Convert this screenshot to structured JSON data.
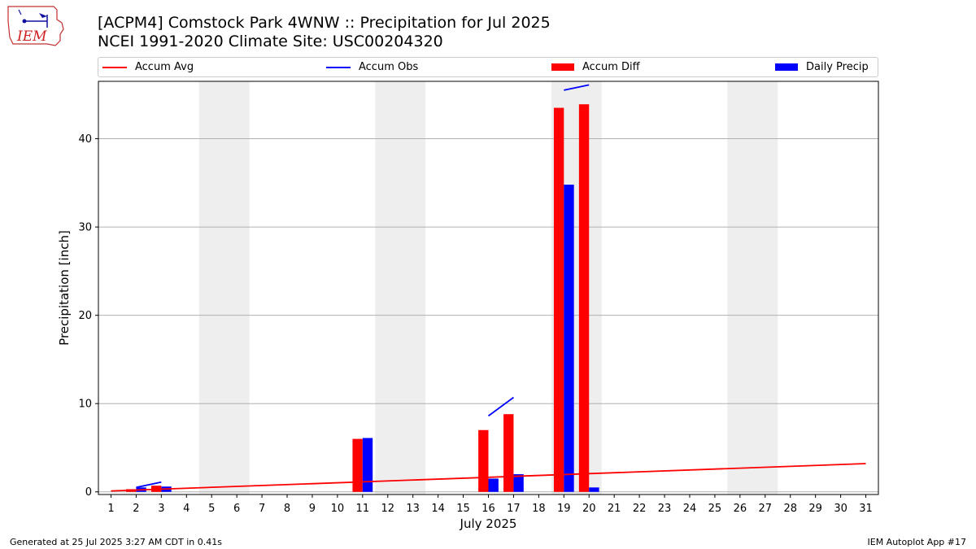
{
  "title_line1": "[ACPM4] Comstock Park 4WNW :: Precipitation for Jul 2025",
  "title_line2": "NCEI 1991-2020 Climate Site: USC00204320",
  "logo_text": "IEM",
  "footer_left": "Generated at 25 Jul 2025 3:27 AM CDT in 0.41s",
  "footer_right": "IEM Autoplot App #17",
  "colors": {
    "avg": "#ff0000",
    "obs": "#0000ff",
    "diff": "#ff0000",
    "daily": "#0000ff",
    "weekend": "#eeeeee",
    "grid": "#b0b0b0"
  },
  "chart_data": {
    "type": "bar",
    "xlabel": "July 2025",
    "ylabel": "Precipitation [inch]",
    "xlim": [
      0.5,
      31.5
    ],
    "ylim": [
      -0.3,
      46.5
    ],
    "yticks": [
      0,
      10,
      20,
      30,
      40
    ],
    "xticks": [
      "1",
      "2",
      "3",
      "4",
      "5",
      "6",
      "7",
      "8",
      "9",
      "10",
      "11",
      "12",
      "13",
      "14",
      "15",
      "16",
      "17",
      "18",
      "19",
      "20",
      "21",
      "22",
      "23",
      "24",
      "25",
      "26",
      "27",
      "28",
      "29",
      "30",
      "31"
    ],
    "grid": "y",
    "legend": "top, horizontal",
    "legend_entries": [
      "Accum Avg",
      "Accum Obs",
      "Accum Diff",
      "Daily Precip"
    ],
    "weekend_days": [
      [
        5,
        6
      ],
      [
        12,
        13
      ],
      [
        19,
        20
      ],
      [
        26,
        27
      ]
    ],
    "accum_avg": {
      "x": [
        1,
        31
      ],
      "y": [
        0.1,
        3.2
      ]
    },
    "accum_obs_segments": [
      {
        "x": [
          2,
          3
        ],
        "y": [
          0.5,
          1.1
        ]
      },
      {
        "x": [
          16,
          17
        ],
        "y": [
          8.6,
          10.7
        ]
      },
      {
        "x": [
          19,
          20
        ],
        "y": [
          45.5,
          46.1
        ]
      }
    ],
    "accum_diff": [
      {
        "day": 2,
        "value": 0.3
      },
      {
        "day": 3,
        "value": 0.7
      },
      {
        "day": 11,
        "value": 6.0
      },
      {
        "day": 16,
        "value": 7.0
      },
      {
        "day": 17,
        "value": 8.8
      },
      {
        "day": 19,
        "value": 43.5
      },
      {
        "day": 20,
        "value": 43.9
      }
    ],
    "daily_precip": [
      {
        "day": 2,
        "value": 0.5
      },
      {
        "day": 3,
        "value": 0.6
      },
      {
        "day": 11,
        "value": 6.1
      },
      {
        "day": 16,
        "value": 1.5
      },
      {
        "day": 17,
        "value": 2.0
      },
      {
        "day": 19,
        "value": 34.8
      },
      {
        "day": 20,
        "value": 0.5
      }
    ]
  }
}
